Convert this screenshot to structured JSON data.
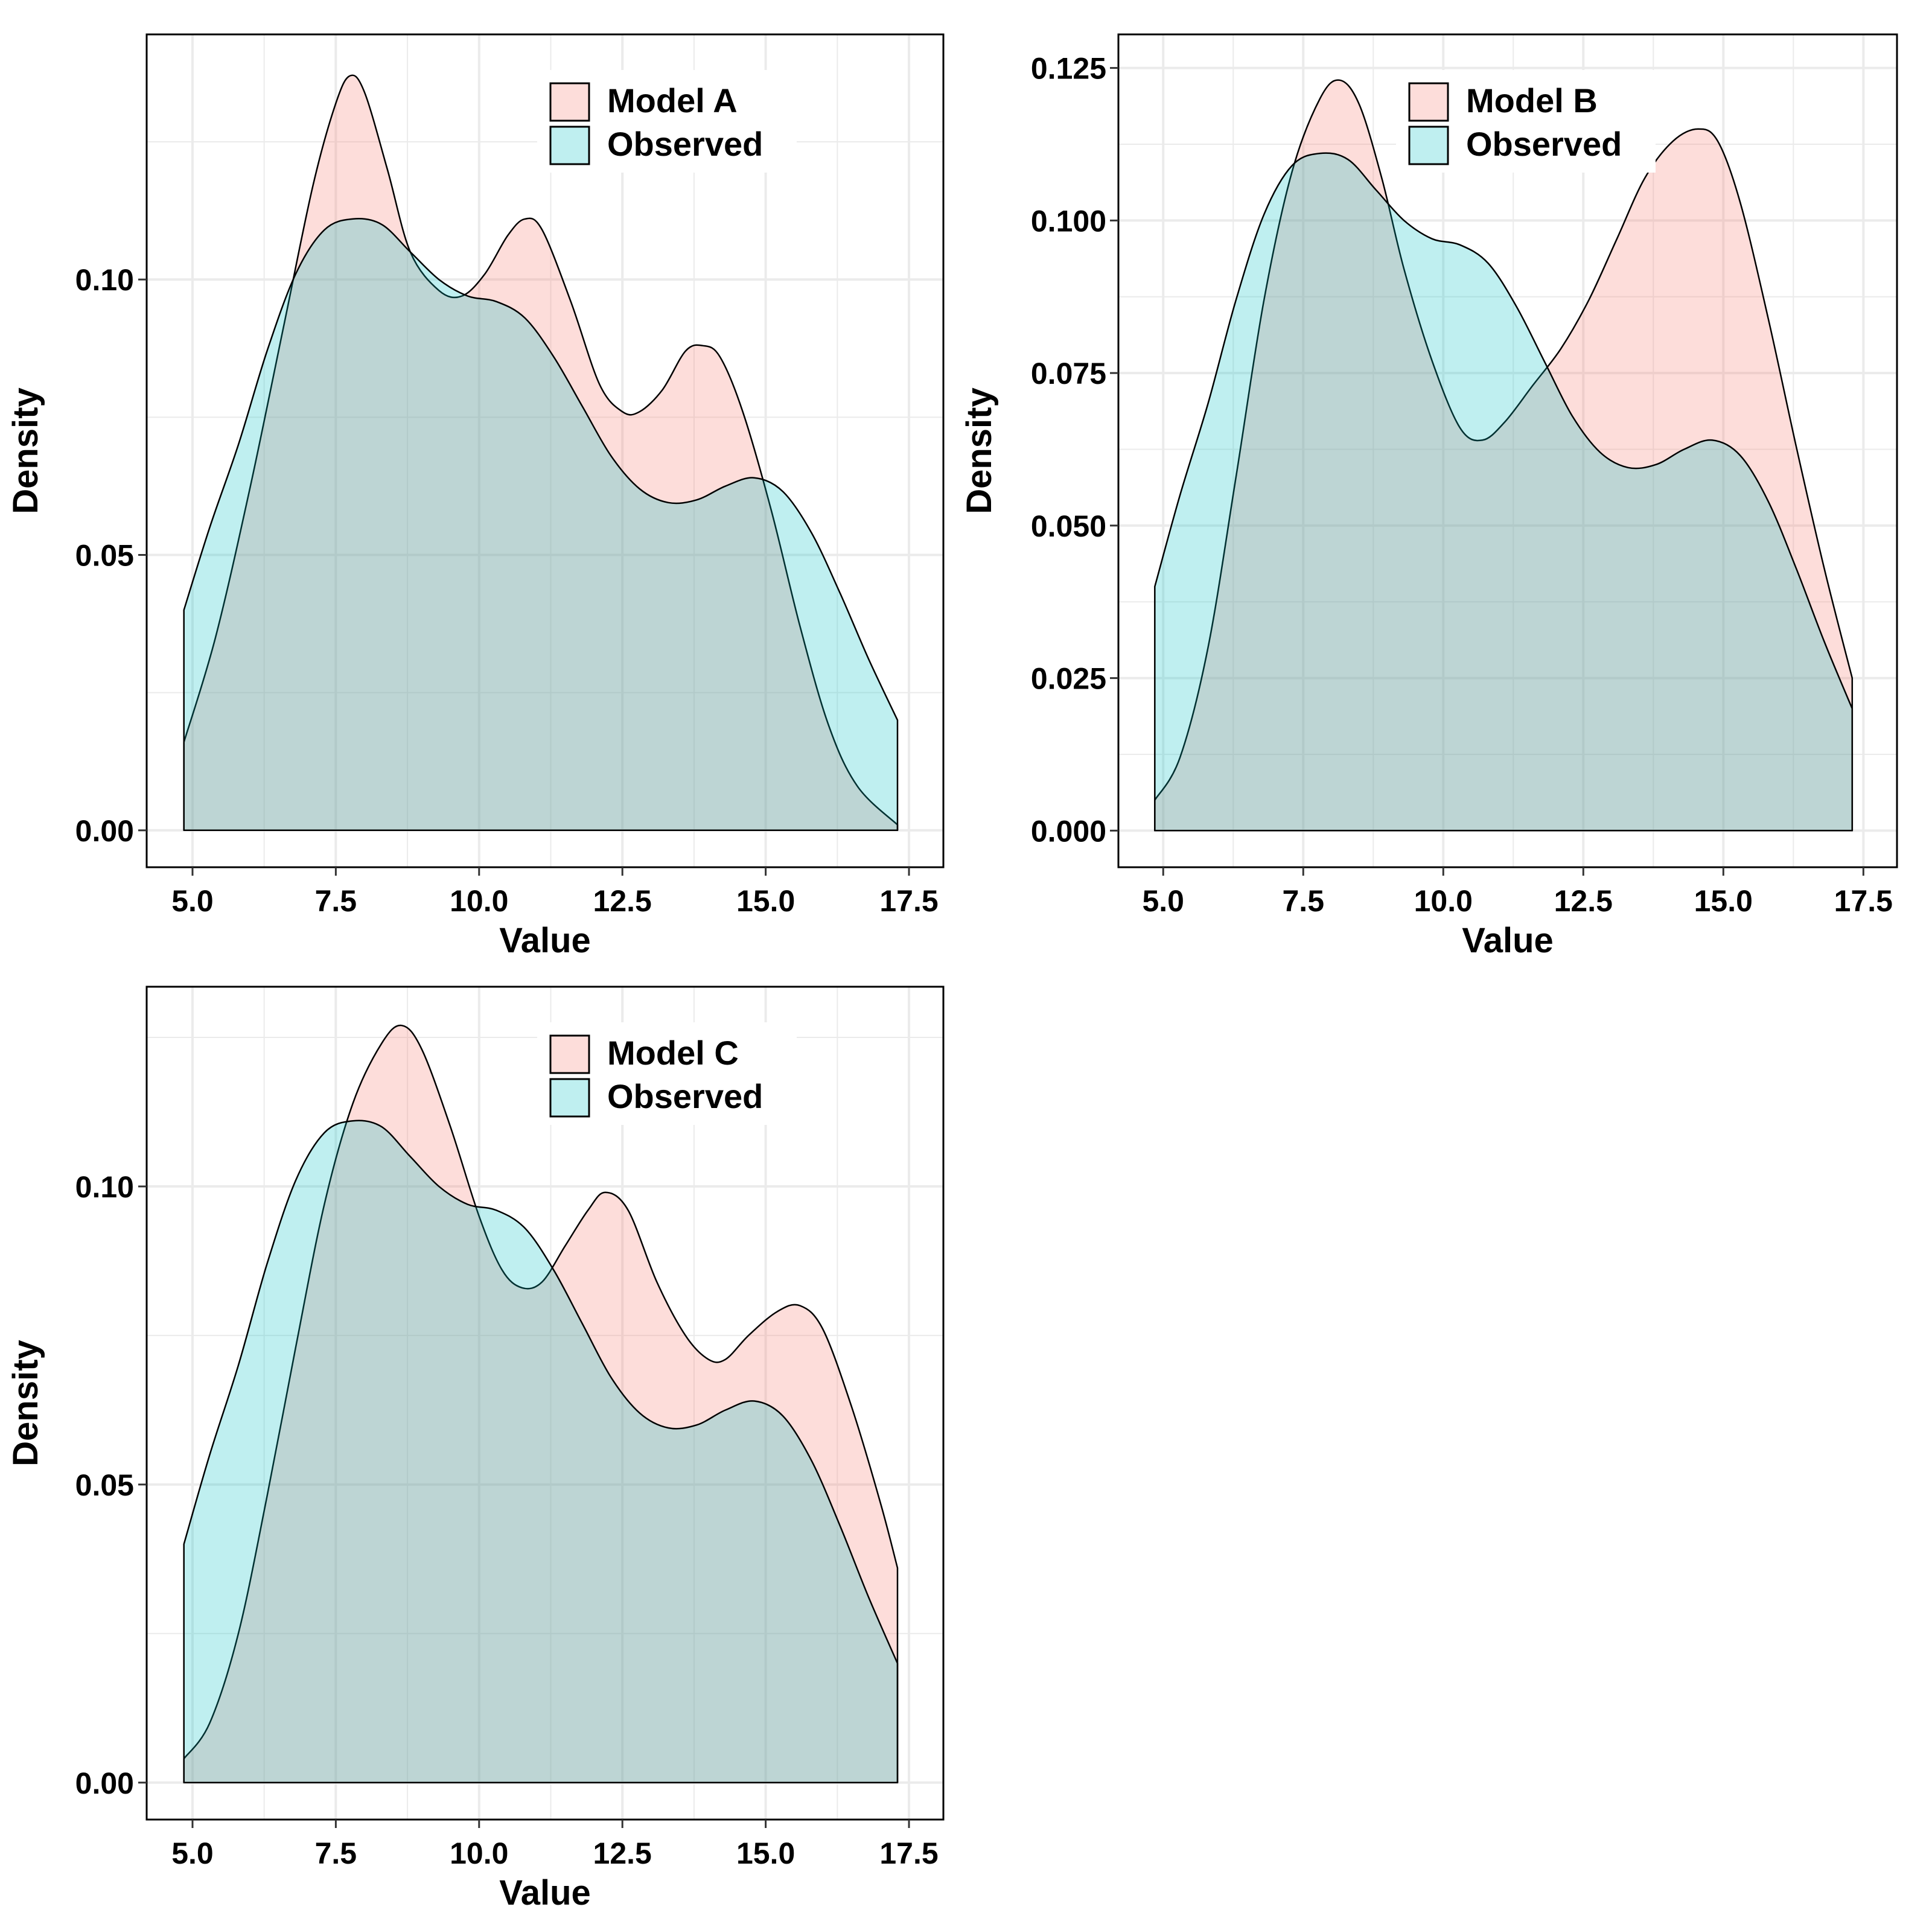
{
  "colors": {
    "model_fill": "#F8766D",
    "observed_fill": "#00BFC4",
    "grid": "#ebebeb",
    "frame": "#000000",
    "background": "#ffffff"
  },
  "chart_data": [
    {
      "type": "area",
      "name": "Model A",
      "xlabel": "Value",
      "ylabel": "Density",
      "xlim": [
        4.2,
        18.1
      ],
      "ylim": [
        -0.0067,
        0.1445
      ],
      "x_ticks": [
        5.0,
        7.5,
        10.0,
        12.5,
        15.0,
        17.5
      ],
      "x_tick_labels": [
        "5.0",
        "7.5",
        "10.0",
        "12.5",
        "15.0",
        "17.5"
      ],
      "y_ticks": [
        0.0,
        0.05,
        0.1
      ],
      "y_tick_labels": [
        "0.00",
        "0.05",
        "0.10"
      ],
      "legend": [
        "Model A",
        "Observed"
      ],
      "legend_position": "top-right",
      "series": [
        {
          "name": "Model A",
          "points": [
            [
              4.85,
              0.016
            ],
            [
              5.4,
              0.035
            ],
            [
              6.0,
              0.062
            ],
            [
              6.6,
              0.092
            ],
            [
              7.1,
              0.117
            ],
            [
              7.5,
              0.132
            ],
            [
              7.75,
              0.137
            ],
            [
              8.0,
              0.134
            ],
            [
              8.4,
              0.12
            ],
            [
              8.8,
              0.105
            ],
            [
              9.3,
              0.098
            ],
            [
              9.7,
              0.097
            ],
            [
              10.1,
              0.101
            ],
            [
              10.5,
              0.108
            ],
            [
              10.8,
              0.111
            ],
            [
              11.1,
              0.109
            ],
            [
              11.6,
              0.096
            ],
            [
              12.1,
              0.081
            ],
            [
              12.5,
              0.076
            ],
            [
              12.8,
              0.076
            ],
            [
              13.2,
              0.08
            ],
            [
              13.6,
              0.087
            ],
            [
              13.9,
              0.088
            ],
            [
              14.2,
              0.086
            ],
            [
              14.6,
              0.076
            ],
            [
              15.1,
              0.058
            ],
            [
              15.6,
              0.037
            ],
            [
              16.1,
              0.019
            ],
            [
              16.6,
              0.008
            ],
            [
              17.3,
              0.001
            ]
          ]
        },
        {
          "name": "Observed",
          "points": [
            [
              4.85,
              0.04
            ],
            [
              5.3,
              0.055
            ],
            [
              5.8,
              0.07
            ],
            [
              6.3,
              0.087
            ],
            [
              6.8,
              0.101
            ],
            [
              7.3,
              0.109
            ],
            [
              7.8,
              0.111
            ],
            [
              8.3,
              0.11
            ],
            [
              8.8,
              0.105
            ],
            [
              9.3,
              0.1
            ],
            [
              9.8,
              0.097
            ],
            [
              10.3,
              0.096
            ],
            [
              10.8,
              0.093
            ],
            [
              11.3,
              0.086
            ],
            [
              11.8,
              0.077
            ],
            [
              12.3,
              0.068
            ],
            [
              12.8,
              0.062
            ],
            [
              13.3,
              0.0595
            ],
            [
              13.8,
              0.06
            ],
            [
              14.3,
              0.0625
            ],
            [
              14.8,
              0.064
            ],
            [
              15.3,
              0.0615
            ],
            [
              15.8,
              0.054
            ],
            [
              16.3,
              0.043
            ],
            [
              16.8,
              0.031
            ],
            [
              17.3,
              0.02
            ]
          ]
        }
      ]
    },
    {
      "type": "area",
      "name": "Model B",
      "xlabel": "Value",
      "ylabel": "Density",
      "xlim": [
        4.2,
        18.1
      ],
      "ylim": [
        -0.006,
        0.1305
      ],
      "x_ticks": [
        5.0,
        7.5,
        10.0,
        12.5,
        15.0,
        17.5
      ],
      "x_tick_labels": [
        "5.0",
        "7.5",
        "10.0",
        "12.5",
        "15.0",
        "17.5"
      ],
      "y_ticks": [
        0.0,
        0.025,
        0.05,
        0.075,
        0.1,
        0.125
      ],
      "y_tick_labels": [
        "0.000",
        "0.025",
        "0.050",
        "0.075",
        "0.100",
        "0.125"
      ],
      "legend": [
        "Model B",
        "Observed"
      ],
      "legend_position": "top-right",
      "series": [
        {
          "name": "Model B",
          "points": [
            [
              4.85,
              0.005
            ],
            [
              5.3,
              0.012
            ],
            [
              5.8,
              0.03
            ],
            [
              6.3,
              0.058
            ],
            [
              6.8,
              0.087
            ],
            [
              7.3,
              0.108
            ],
            [
              7.8,
              0.12
            ],
            [
              8.15,
              0.123
            ],
            [
              8.5,
              0.119
            ],
            [
              8.9,
              0.107
            ],
            [
              9.3,
              0.092
            ],
            [
              9.8,
              0.077
            ],
            [
              10.3,
              0.066
            ],
            [
              10.7,
              0.064
            ],
            [
              11.1,
              0.067
            ],
            [
              11.6,
              0.073
            ],
            [
              12.1,
              0.079
            ],
            [
              12.6,
              0.087
            ],
            [
              13.1,
              0.097
            ],
            [
              13.6,
              0.107
            ],
            [
              14.1,
              0.113
            ],
            [
              14.55,
              0.115
            ],
            [
              14.9,
              0.113
            ],
            [
              15.3,
              0.103
            ],
            [
              15.8,
              0.084
            ],
            [
              16.3,
              0.063
            ],
            [
              16.8,
              0.043
            ],
            [
              17.3,
              0.025
            ]
          ]
        },
        {
          "name": "Observed",
          "points": [
            [
              4.85,
              0.04
            ],
            [
              5.3,
              0.055
            ],
            [
              5.8,
              0.07
            ],
            [
              6.3,
              0.087
            ],
            [
              6.8,
              0.101
            ],
            [
              7.3,
              0.109
            ],
            [
              7.8,
              0.111
            ],
            [
              8.3,
              0.11
            ],
            [
              8.8,
              0.105
            ],
            [
              9.3,
              0.1
            ],
            [
              9.8,
              0.097
            ],
            [
              10.3,
              0.096
            ],
            [
              10.8,
              0.093
            ],
            [
              11.3,
              0.086
            ],
            [
              11.8,
              0.077
            ],
            [
              12.3,
              0.068
            ],
            [
              12.8,
              0.062
            ],
            [
              13.3,
              0.0595
            ],
            [
              13.8,
              0.06
            ],
            [
              14.3,
              0.0625
            ],
            [
              14.8,
              0.064
            ],
            [
              15.3,
              0.0615
            ],
            [
              15.8,
              0.054
            ],
            [
              16.3,
              0.043
            ],
            [
              16.8,
              0.031
            ],
            [
              17.3,
              0.02
            ]
          ]
        }
      ]
    },
    {
      "type": "area",
      "name": "Model C",
      "xlabel": "Value",
      "ylabel": "Density",
      "xlim": [
        4.2,
        18.1
      ],
      "ylim": [
        -0.0062,
        0.1335
      ],
      "x_ticks": [
        5.0,
        7.5,
        10.0,
        12.5,
        15.0,
        17.5
      ],
      "x_tick_labels": [
        "5.0",
        "7.5",
        "10.0",
        "12.5",
        "15.0",
        "17.5"
      ],
      "y_ticks": [
        0.0,
        0.05,
        0.1
      ],
      "y_tick_labels": [
        "0.00",
        "0.05",
        "0.10"
      ],
      "legend": [
        "Model C",
        "Observed"
      ],
      "legend_position": "top-right",
      "series": [
        {
          "name": "Model C",
          "points": [
            [
              4.85,
              0.004
            ],
            [
              5.3,
              0.01
            ],
            [
              5.8,
              0.025
            ],
            [
              6.3,
              0.048
            ],
            [
              6.8,
              0.073
            ],
            [
              7.3,
              0.097
            ],
            [
              7.8,
              0.114
            ],
            [
              8.3,
              0.124
            ],
            [
              8.65,
              0.127
            ],
            [
              9.0,
              0.123
            ],
            [
              9.5,
              0.11
            ],
            [
              10.0,
              0.095
            ],
            [
              10.4,
              0.086
            ],
            [
              10.75,
              0.083
            ],
            [
              11.1,
              0.084
            ],
            [
              11.5,
              0.09
            ],
            [
              11.9,
              0.096
            ],
            [
              12.2,
              0.099
            ],
            [
              12.6,
              0.096
            ],
            [
              13.1,
              0.084
            ],
            [
              13.6,
              0.075
            ],
            [
              14.0,
              0.071
            ],
            [
              14.3,
              0.071
            ],
            [
              14.7,
              0.075
            ],
            [
              15.2,
              0.079
            ],
            [
              15.6,
              0.08
            ],
            [
              16.0,
              0.076
            ],
            [
              16.5,
              0.063
            ],
            [
              17.0,
              0.047
            ],
            [
              17.3,
              0.036
            ]
          ]
        },
        {
          "name": "Observed",
          "points": [
            [
              4.85,
              0.04
            ],
            [
              5.3,
              0.055
            ],
            [
              5.8,
              0.07
            ],
            [
              6.3,
              0.087
            ],
            [
              6.8,
              0.101
            ],
            [
              7.3,
              0.109
            ],
            [
              7.8,
              0.111
            ],
            [
              8.3,
              0.11
            ],
            [
              8.8,
              0.105
            ],
            [
              9.3,
              0.1
            ],
            [
              9.8,
              0.097
            ],
            [
              10.3,
              0.096
            ],
            [
              10.8,
              0.093
            ],
            [
              11.3,
              0.086
            ],
            [
              11.8,
              0.077
            ],
            [
              12.3,
              0.068
            ],
            [
              12.8,
              0.062
            ],
            [
              13.3,
              0.0595
            ],
            [
              13.8,
              0.06
            ],
            [
              14.3,
              0.0625
            ],
            [
              14.8,
              0.064
            ],
            [
              15.3,
              0.0615
            ],
            [
              15.8,
              0.054
            ],
            [
              16.3,
              0.043
            ],
            [
              16.8,
              0.031
            ],
            [
              17.3,
              0.02
            ]
          ]
        }
      ]
    }
  ]
}
